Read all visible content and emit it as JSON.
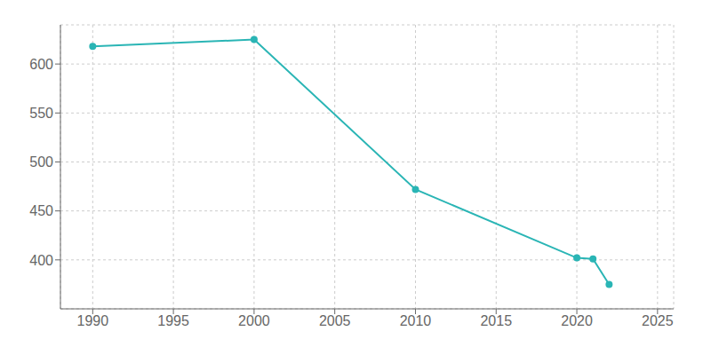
{
  "chart_data": {
    "type": "line",
    "x": [
      1990,
      2000,
      2010,
      2020,
      2021,
      2022
    ],
    "values": [
      618,
      625,
      472,
      402,
      401,
      375
    ],
    "color": "#2ab5b5",
    "marker": "circle",
    "xlim": [
      1988,
      2026
    ],
    "ylim": [
      350,
      640
    ],
    "xticks": [
      1990,
      1995,
      2000,
      2005,
      2010,
      2015,
      2020,
      2025
    ],
    "yticks": [
      400,
      450,
      500,
      550,
      600
    ],
    "grid": true
  }
}
